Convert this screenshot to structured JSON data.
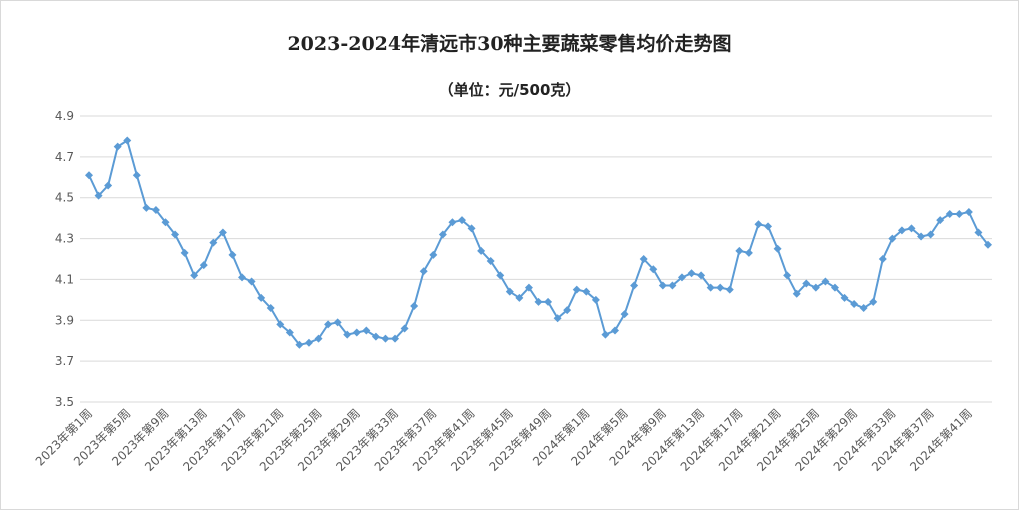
{
  "chart_data": {
    "type": "line",
    "title": "2023-2024年清远市30种主要蔬菜零售均价走势图",
    "subtitle": "（单位：元/500克）",
    "ylim": [
      3.5,
      4.9
    ],
    "yticks": [
      "3.5",
      "3.7",
      "3.9",
      "4.1",
      "4.3",
      "4.5",
      "4.7",
      "4.9"
    ],
    "grid": true,
    "legend": "none",
    "color": "#5b9bd5",
    "categories": [
      "2023年第1周",
      "2023年第2周",
      "2023年第3周",
      "2023年第4周",
      "2023年第5周",
      "2023年第6周",
      "2023年第7周",
      "2023年第8周",
      "2023年第9周",
      "2023年第10周",
      "2023年第11周",
      "2023年第12周",
      "2023年第13周",
      "2023年第14周",
      "2023年第15周",
      "2023年第16周",
      "2023年第17周",
      "2023年第18周",
      "2023年第19周",
      "2023年第20周",
      "2023年第21周",
      "2023年第22周",
      "2023年第23周",
      "2023年第24周",
      "2023年第25周",
      "2023年第26周",
      "2023年第27周",
      "2023年第28周",
      "2023年第29周",
      "2023年第30周",
      "2023年第31周",
      "2023年第32周",
      "2023年第33周",
      "2023年第34周",
      "2023年第35周",
      "2023年第36周",
      "2023年第37周",
      "2023年第38周",
      "2023年第39周",
      "2023年第40周",
      "2023年第41周",
      "2023年第42周",
      "2023年第43周",
      "2023年第44周",
      "2023年第45周",
      "2023年第46周",
      "2023年第47周",
      "2023年第48周",
      "2023年第49周",
      "2023年第50周",
      "2023年第51周",
      "2023年第52周",
      "2024年第1周",
      "2024年第2周",
      "2024年第3周",
      "2024年第4周",
      "2024年第5周",
      "2024年第6周",
      "2024年第7周",
      "2024年第8周",
      "2024年第9周",
      "2024年第10周",
      "2024年第11周",
      "2024年第12周",
      "2024年第13周",
      "2024年第14周",
      "2024年第15周",
      "2024年第16周",
      "2024年第17周",
      "2024年第18周",
      "2024年第19周",
      "2024年第20周",
      "2024年第21周",
      "2024年第22周",
      "2024年第23周",
      "2024年第24周",
      "2024年第25周",
      "2024年第26周",
      "2024年第27周",
      "2024年第28周",
      "2024年第29周",
      "2024年第30周",
      "2024年第31周",
      "2024年第32周",
      "2024年第33周",
      "2024年第34周",
      "2024年第35周",
      "2024年第36周",
      "2024年第37周",
      "2024年第38周",
      "2024年第39周",
      "2024年第40周",
      "2024年第41周",
      "2024年第42周",
      "2024年第43周"
    ],
    "values": [
      4.61,
      4.51,
      4.56,
      4.75,
      4.78,
      4.61,
      4.45,
      4.44,
      4.38,
      4.32,
      4.23,
      4.12,
      4.17,
      4.28,
      4.33,
      4.22,
      4.11,
      4.09,
      4.01,
      3.96,
      3.88,
      3.84,
      3.78,
      3.79,
      3.81,
      3.88,
      3.89,
      3.83,
      3.84,
      3.85,
      3.82,
      3.81,
      3.81,
      3.86,
      3.97,
      4.14,
      4.22,
      4.32,
      4.38,
      4.39,
      4.35,
      4.24,
      4.19,
      4.12,
      4.04,
      4.01,
      4.06,
      3.99,
      3.99,
      3.91,
      3.95,
      4.05,
      4.04,
      4.0,
      3.83,
      3.85,
      3.93,
      4.07,
      4.2,
      4.15,
      4.07,
      4.07,
      4.11,
      4.13,
      4.12,
      4.06,
      4.06,
      4.05,
      4.24,
      4.23,
      4.37,
      4.36,
      4.25,
      4.12,
      4.03,
      4.08,
      4.06,
      4.09,
      4.06,
      4.01,
      3.98,
      3.96,
      3.99,
      4.2,
      4.3,
      4.34,
      4.35,
      4.31,
      4.32,
      4.39,
      4.42,
      4.42,
      4.43,
      4.33,
      4.27
    ],
    "xtick_labels": [
      "2023年第1周",
      "2023年第5周",
      "2023年第9周",
      "2023年第13周",
      "2023年第17周",
      "2023年第21周",
      "2023年第25周",
      "2023年第29周",
      "2023年第33周",
      "2023年第37周",
      "2023年第41周",
      "2023年第45周",
      "2023年第49周",
      "2024年第1周",
      "2024年第5周",
      "2024年第9周",
      "2024年第13周",
      "2024年第17周",
      "2024年第21周",
      "2024年第25周",
      "2024年第29周",
      "2024年第33周",
      "2024年第37周",
      "2024年第41周"
    ]
  }
}
